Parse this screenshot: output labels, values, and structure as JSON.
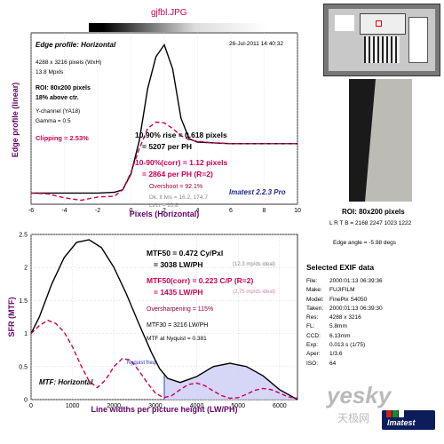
{
  "file_title": "gjfbl.JPG",
  "top_panel": {
    "heading": "Edge profile: Horizontal",
    "date": "26-Jul-2011 14:40:32",
    "info": [
      "4288 x 3216 pixels (WxH)",
      "13.8 Mpxls",
      "ROI: 80x200 pixels",
      "18% above ctr.",
      "Y-channel (YA18)",
      "Gamma = 0.5"
    ],
    "clipping": "Clipping =   2.53%",
    "rise": "10.90% rise = 0.618 pixels",
    "rise_ph": "= 5207 per PH",
    "rise_corr": "10-90%(corr) = 1.12 pixels",
    "rise_corr_ph": "= 2864 per PH  (R=2)",
    "overshoot": "Overshoot = 92.1%",
    "dk_lt": "Dk, lt lvls = 16.2, 174.7",
    "ltlt": "Lt/Lt = 10.8",
    "brand": "Imatest 2.2.3 Pro"
  },
  "bottom_panel": {
    "mtf50": "MTF50 = 0.472 Cy/Pxl",
    "mtf50_lw": "= 3038 LW/PH",
    "mtf50_ideal": "(12.3 mp/ds ideal)",
    "mtf50c": "MTF50(corr) = 0.223 C/P  (R=2)",
    "mtf50c_lw": "= 1435 LW/PH",
    "mtf50c_ideal": "(2.75 mp/ds ideal)",
    "oversharp": "Oversharpening = 115%",
    "mtf30": "MTF30 = 3216 LW/PH",
    "nyq_val": "MTF at Nyquist = 0.381",
    "nyq_label": "Nyquist freq.",
    "heading": "MTF: Horizontal"
  },
  "right_panel": {
    "roi_label": "ROI: 80x200 pixels",
    "lrtb": "L R T B = 2168 2247 1023 1222",
    "edge_angle": "Edge angle = -5.98 degs",
    "exif_title": "Selected EXIF data",
    "exif": [
      {
        "k": "File:",
        "v": "2000:01:13 06:39:36"
      },
      {
        "k": "Make:",
        "v": "FUJIFILM"
      },
      {
        "k": "Model:",
        "v": "FinePix S4050"
      },
      {
        "k": "Taken:",
        "v": "2000:01:13 06:39:30"
      },
      {
        "k": "Res:",
        "v": "4288 x 3216"
      },
      {
        "k": "FL:",
        "v": "5.8mm"
      },
      {
        "k": "CCD:",
        "v": "6.13mm"
      },
      {
        "k": "Exp:",
        "v": "0.013 s (1/75)"
      },
      {
        "k": "Aper:",
        "v": "1/3.6"
      },
      {
        "k": "ISO:",
        "v": "64"
      }
    ],
    "watermark": "yesky",
    "watermark_sub": "天极网",
    "imatest_logo": "Imatest"
  },
  "chart_data": [
    {
      "type": "line",
      "xlabel": "Pixels (Horizontal)",
      "ylabel": "Edge profile (linear)",
      "xlim": [
        -6,
        10
      ],
      "xticks": [
        -6,
        -4,
        -2,
        0,
        2,
        4,
        6,
        8,
        10
      ],
      "grid": true,
      "series": [
        {
          "color": "#000000",
          "style": "solid",
          "x": [
            -6,
            -5,
            -4,
            -3,
            -2,
            -1,
            -0.5,
            0,
            0.5,
            1,
            1.5,
            2,
            2.5,
            3,
            3.5,
            4,
            5,
            6,
            7,
            8,
            9,
            10
          ],
          "y": [
            0.04,
            0.04,
            0.04,
            0.04,
            0.04,
            0.05,
            0.08,
            0.28,
            0.7,
            1.35,
            1.75,
            1.9,
            1.6,
            0.98,
            0.72,
            0.68,
            0.67,
            0.66,
            0.66,
            0.66,
            0.66,
            0.66
          ]
        },
        {
          "color": "#cc0055",
          "style": "dashed",
          "x": [
            -6,
            -5,
            -4,
            -3,
            -2,
            -1,
            -0.5,
            0,
            0.5,
            1,
            1.5,
            2,
            2.5,
            3,
            3.5,
            4,
            5,
            6,
            7,
            8,
            9,
            10
          ],
          "y": [
            0.04,
            0.03,
            -0.02,
            -0.05,
            -0.01,
            0.0,
            0.08,
            0.3,
            0.6,
            0.85,
            0.93,
            0.92,
            0.85,
            0.76,
            0.71,
            0.69,
            0.67,
            0.66,
            0.66,
            0.66,
            0.66,
            0.66
          ]
        }
      ]
    },
    {
      "type": "line",
      "xlabel": "Line widths per picture height (LW/PH)",
      "ylabel": "SFR (MTF)",
      "xlim": [
        0,
        6432
      ],
      "ylim": [
        0,
        2.5
      ],
      "xticks": [
        0,
        1000,
        2000,
        3000,
        4000,
        5000,
        6000
      ],
      "yticks": [
        0,
        0.5,
        1,
        1.5,
        2,
        2.5
      ],
      "grid": true,
      "nyquist": 3216,
      "series": [
        {
          "color": "#000000",
          "style": "solid",
          "x": [
            0,
            200,
            500,
            800,
            1100,
            1400,
            1700,
            2000,
            2300,
            2600,
            2900,
            3100,
            3300,
            3600,
            4000,
            4400,
            4800,
            5200,
            5600,
            6000,
            6432
          ],
          "y": [
            1.0,
            1.25,
            1.75,
            2.15,
            2.38,
            2.42,
            2.3,
            2.0,
            1.6,
            1.15,
            0.72,
            0.47,
            0.32,
            0.26,
            0.35,
            0.5,
            0.55,
            0.5,
            0.36,
            0.15,
            0.0
          ]
        },
        {
          "color": "#cc0055",
          "style": "dashed",
          "x": [
            0,
            200,
            400,
            600,
            800,
            1000,
            1200,
            1400,
            1600,
            1800,
            2000,
            2200,
            2400,
            2600,
            2800,
            3000,
            3200,
            3400,
            3600,
            3800,
            4000,
            4200,
            4400,
            4600,
            4800,
            5000,
            5200,
            5400,
            5600,
            5800,
            6000,
            6200,
            6432
          ],
          "y": [
            1.0,
            1.12,
            1.2,
            1.15,
            1.02,
            0.8,
            0.52,
            0.28,
            0.18,
            0.3,
            0.5,
            0.62,
            0.6,
            0.44,
            0.26,
            0.1,
            0.03,
            0.06,
            0.15,
            0.23,
            0.25,
            0.21,
            0.13,
            0.06,
            0.02,
            0.03,
            0.08,
            0.14,
            0.17,
            0.15,
            0.1,
            0.04,
            0.02
          ]
        }
      ]
    }
  ]
}
